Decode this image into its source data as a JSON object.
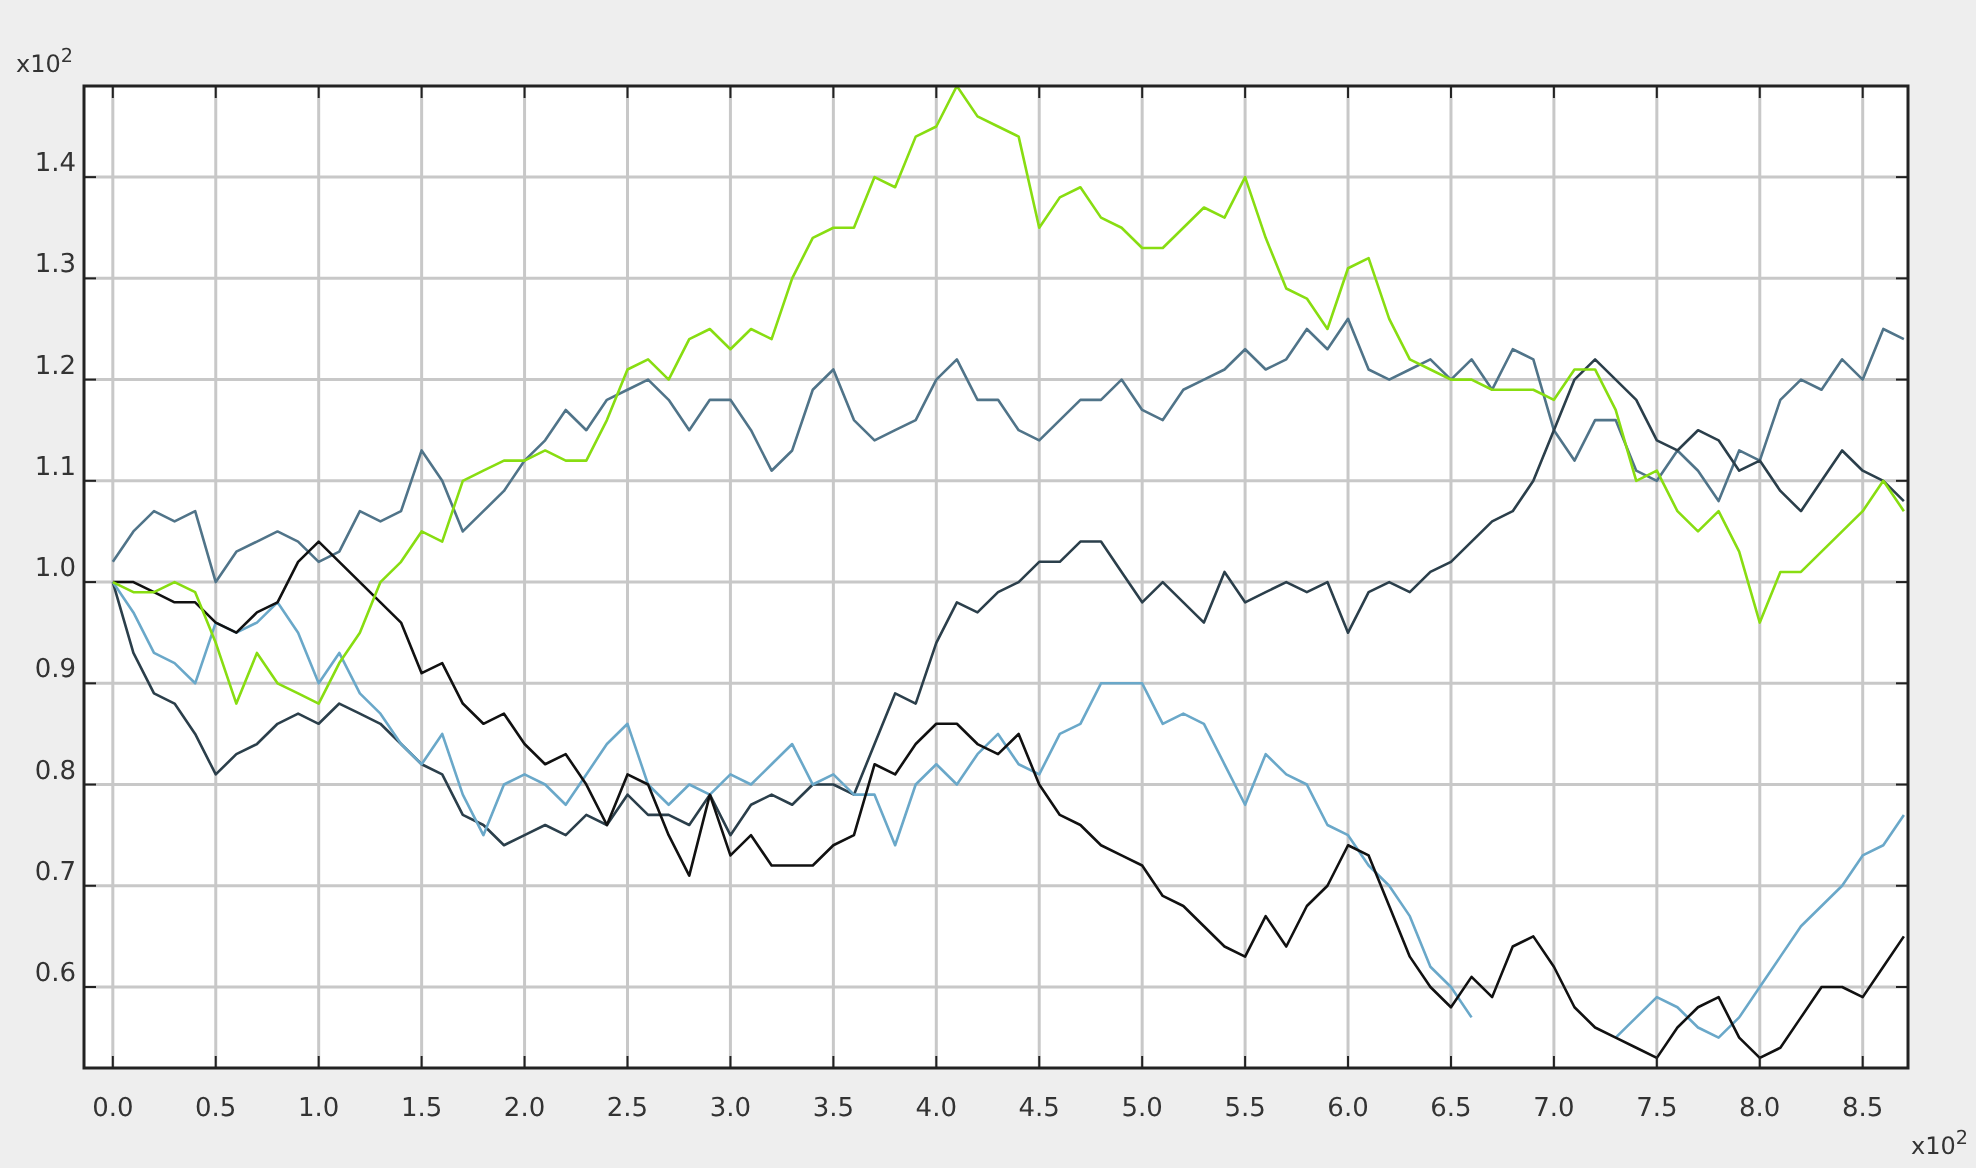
{
  "chart_data": {
    "type": "line",
    "xlabel": "x10$^{2}$",
    "ylabel": "x10$^{2}$",
    "x": [
      0,
      0.1,
      0.2,
      0.3,
      0.4,
      0.5,
      0.6,
      0.7,
      0.8,
      0.9,
      1,
      1.1,
      1.2,
      1.3,
      1.4,
      1.5,
      1.6,
      1.7,
      1.8,
      1.9,
      2,
      2.1,
      2.2,
      2.3,
      2.4,
      2.5,
      2.6,
      2.7,
      2.8,
      2.9,
      3,
      3.1,
      3.2,
      3.3,
      3.4,
      3.5,
      3.6,
      3.7,
      3.8,
      3.9,
      4,
      4.1,
      4.2,
      4.3,
      4.4,
      4.5,
      4.6,
      4.7,
      4.8,
      4.9,
      5,
      5.1,
      5.2,
      5.3,
      5.4,
      5.5,
      5.6,
      5.7,
      5.8,
      5.9,
      6,
      6.1,
      6.2,
      6.3,
      6.4,
      6.5,
      6.6,
      6.7,
      6.8,
      6.9,
      7,
      7.1,
      7.2,
      7.3,
      7.4,
      7.5,
      7.6,
      7.7,
      7.8,
      7.9,
      8,
      8.1,
      8.2,
      8.3,
      8.4,
      8.5,
      8.6,
      8.7
    ],
    "series": [
      {
        "color": "#507489",
        "values": [
          1.02,
          1.05,
          1.07,
          1.06,
          1.07,
          1.0,
          1.03,
          1.04,
          1.05,
          1.04,
          1.02,
          1.03,
          1.07,
          1.06,
          1.07,
          1.13,
          1.1,
          1.05,
          1.07,
          1.09,
          1.12,
          1.14,
          1.17,
          1.15,
          1.18,
          1.19,
          1.2,
          1.18,
          1.15,
          1.18,
          1.18,
          1.15,
          1.11,
          1.13,
          1.19,
          1.21,
          1.16,
          1.14,
          1.15,
          1.16,
          1.2,
          1.22,
          1.18,
          1.18,
          1.15,
          1.14,
          1.16,
          1.18,
          1.18,
          1.2,
          1.17,
          1.16,
          1.19,
          1.2,
          1.21,
          1.23,
          1.21,
          1.22,
          1.25,
          1.23,
          1.26,
          1.21,
          1.2,
          1.21,
          1.22,
          1.2,
          1.22,
          1.19,
          1.23,
          1.22,
          1.15,
          1.12,
          1.16,
          1.16,
          1.11,
          1.1,
          1.13,
          1.11,
          1.08,
          1.13,
          1.12,
          1.18,
          1.2,
          1.19,
          1.22,
          1.2,
          1.25,
          1.24
        ]
      },
      {
        "color": "#2b3f4b",
        "values": [
          1.0,
          0.93,
          0.89,
          0.88,
          0.85,
          0.81,
          0.83,
          0.84,
          0.86,
          0.87,
          0.86,
          0.88,
          0.87,
          0.86,
          0.84,
          0.82,
          0.81,
          0.77,
          0.76,
          0.74,
          0.75,
          0.76,
          0.75,
          0.77,
          0.76,
          0.79,
          0.77,
          0.77,
          0.76,
          0.79,
          0.75,
          0.78,
          0.79,
          0.78,
          0.8,
          0.8,
          0.79,
          0.84,
          0.89,
          0.88,
          0.94,
          0.98,
          0.97,
          0.99,
          1.0,
          1.02,
          1.02,
          1.04,
          1.04,
          1.01,
          0.98,
          1.0,
          0.98,
          0.96,
          1.01,
          0.98,
          0.99,
          1.0,
          0.99,
          1.0,
          0.95,
          0.99,
          1.0,
          0.99,
          1.01,
          1.02,
          1.04,
          1.06,
          1.07,
          1.1,
          1.15,
          1.2,
          1.22,
          1.2,
          1.18,
          1.14,
          1.13,
          1.15,
          1.14,
          1.11,
          1.12,
          1.09,
          1.07,
          1.1,
          1.13,
          1.11,
          1.1,
          1.08
        ]
      },
      {
        "color": "#6aa8c9",
        "values": [
          1.0,
          0.97,
          0.93,
          0.92,
          0.9,
          0.96,
          0.95,
          0.96,
          0.98,
          0.95,
          0.9,
          0.93,
          0.89,
          0.87,
          0.84,
          0.82,
          0.85,
          0.79,
          0.75,
          0.8,
          0.81,
          0.8,
          0.78,
          0.81,
          0.84,
          0.86,
          0.8,
          0.78,
          0.8,
          0.79,
          0.81,
          0.8,
          0.82,
          0.84,
          0.8,
          0.81,
          0.79,
          0.79,
          0.74,
          0.8,
          0.82,
          0.8,
          0.83,
          0.85,
          0.82,
          0.81,
          0.85,
          0.86,
          0.9,
          0.9,
          0.9,
          0.86,
          0.87,
          0.86,
          0.82,
          0.78,
          0.83,
          0.81,
          0.8,
          0.76,
          0.75,
          0.72,
          0.7,
          0.67,
          0.62,
          0.6,
          0.57,
          null,
          null,
          null,
          null,
          null,
          null,
          0.55,
          0.57,
          0.59,
          0.58,
          0.56,
          0.55,
          0.57,
          0.6,
          0.63,
          0.66,
          0.68,
          0.7,
          0.73,
          0.74,
          0.77
        ]
      },
      {
        "color": "#111111",
        "values": [
          1.0,
          1.0,
          0.99,
          0.98,
          0.98,
          0.96,
          0.95,
          0.97,
          0.98,
          1.02,
          1.04,
          1.02,
          1.0,
          0.98,
          0.96,
          0.91,
          0.92,
          0.88,
          0.86,
          0.87,
          0.84,
          0.82,
          0.83,
          0.8,
          0.76,
          0.81,
          0.8,
          0.75,
          0.71,
          0.79,
          0.73,
          0.75,
          0.72,
          0.72,
          0.72,
          0.74,
          0.75,
          0.82,
          0.81,
          0.84,
          0.86,
          0.86,
          0.84,
          0.83,
          0.85,
          0.8,
          0.77,
          0.76,
          0.74,
          0.73,
          0.72,
          0.69,
          0.68,
          0.66,
          0.64,
          0.63,
          0.67,
          0.64,
          0.68,
          0.7,
          0.74,
          0.73,
          0.68,
          0.63,
          0.6,
          0.58,
          0.61,
          0.59,
          0.64,
          0.65,
          0.62,
          0.58,
          0.56,
          0.55,
          0.54,
          0.53,
          0.56,
          0.58,
          0.59,
          0.55,
          0.53,
          0.54,
          0.57,
          0.6,
          0.6,
          0.59,
          0.62,
          0.65
        ]
      },
      {
        "color": "#88dd11",
        "values": [
          1.0,
          0.99,
          0.99,
          1.0,
          0.99,
          0.94,
          0.88,
          0.93,
          0.9,
          0.89,
          0.88,
          0.92,
          0.95,
          1.0,
          1.02,
          1.05,
          1.04,
          1.1,
          1.11,
          1.12,
          1.12,
          1.13,
          1.12,
          1.12,
          1.16,
          1.21,
          1.22,
          1.2,
          1.24,
          1.25,
          1.23,
          1.25,
          1.24,
          1.3,
          1.34,
          1.35,
          1.35,
          1.4,
          1.39,
          1.44,
          1.45,
          1.49,
          1.46,
          1.45,
          1.44,
          1.35,
          1.38,
          1.39,
          1.36,
          1.35,
          1.33,
          1.33,
          1.35,
          1.37,
          1.36,
          1.4,
          1.34,
          1.29,
          1.28,
          1.25,
          1.31,
          1.32,
          1.26,
          1.22,
          1.21,
          1.2,
          1.2,
          1.19,
          1.19,
          1.19,
          1.18,
          1.21,
          1.21,
          1.17,
          1.1,
          1.11,
          1.07,
          1.05,
          1.07,
          1.03,
          0.96,
          1.01,
          1.01,
          1.03,
          1.05,
          1.07,
          1.1,
          1.07
        ]
      }
    ],
    "xlim": [
      -0.14,
      8.72
    ],
    "ylim": [
      0.52,
      1.49
    ],
    "xticks": [
      {
        "value": 0,
        "label": "0.0"
      },
      0.5,
      {
        "value": 1,
        "label": "1.0"
      },
      1.5,
      {
        "value": 2,
        "label": "2.0"
      },
      2.5,
      {
        "value": 3,
        "label": "3.0"
      },
      3.5,
      {
        "value": 4,
        "label": "4.0"
      },
      4.5,
      {
        "value": 5,
        "label": "5.0"
      },
      5.5,
      {
        "value": 6,
        "label": "6.0"
      },
      6.5,
      {
        "value": 7,
        "label": "7.0"
      },
      7.5,
      {
        "value": 8,
        "label": "8.0"
      },
      8.5
    ],
    "yticks": [
      0.6,
      0.7,
      0.8,
      0.9,
      {
        "value": 1,
        "label": "1.0"
      },
      1.1,
      1.2,
      1.3,
      1.4
    ],
    "grid": true,
    "marker": "none",
    "line_style": "solid"
  }
}
